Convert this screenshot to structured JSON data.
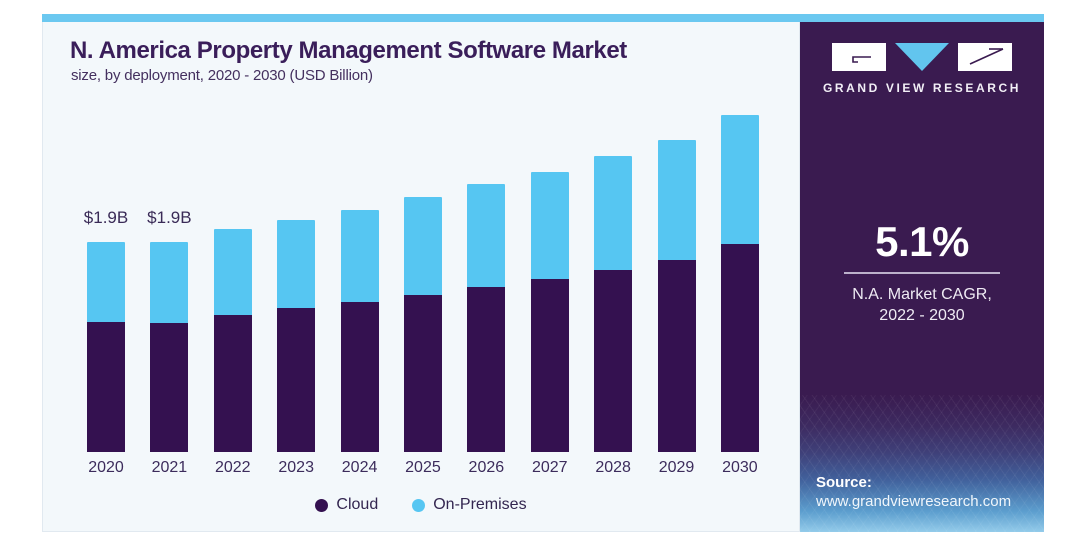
{
  "header": {
    "title": "N. America Property Management Software Market",
    "subtitle": "size, by deployment, 2020 - 2030 (USD Billion)"
  },
  "chart_data": {
    "type": "bar",
    "stacked": true,
    "title": "N. America Property Management Software Market size, by deployment, 2020 - 2030 (USD Billion)",
    "unit": "USD Billion",
    "categories": [
      "2020",
      "2021",
      "2022",
      "2023",
      "2024",
      "2025",
      "2026",
      "2027",
      "2028",
      "2029",
      "2030"
    ],
    "series": [
      {
        "name": "Cloud",
        "color": "#341150",
        "values": [
          1.18,
          1.17,
          1.24,
          1.3,
          1.36,
          1.42,
          1.49,
          1.57,
          1.65,
          1.74,
          1.88
        ]
      },
      {
        "name": "On-Premises",
        "color": "#56C6F2",
        "values": [
          0.72,
          0.73,
          0.78,
          0.8,
          0.83,
          0.89,
          0.93,
          0.97,
          1.03,
          1.09,
          1.17
        ]
      }
    ],
    "totals": [
      1.9,
      1.9,
      2.02,
      2.1,
      2.19,
      2.31,
      2.42,
      2.54,
      2.68,
      2.83,
      3.05
    ],
    "bar_labels": [
      "$1.9B",
      "$1.9B",
      "",
      "",
      "",
      "",
      "",
      "",
      "",
      "",
      ""
    ],
    "ylim": [
      0,
      3.06
    ],
    "grid": false,
    "legend_position": "bottom",
    "legend": [
      "Cloud",
      "On-Premises"
    ]
  },
  "side_panel": {
    "brand": "GRAND VIEW RESEARCH",
    "cagr_value": "5.1%",
    "cagr_caption_line1": "N.A. Market CAGR,",
    "cagr_caption_line2": "2022 - 2030",
    "source_label": "Source:",
    "source_url": "www.grandviewresearch.com"
  },
  "colors": {
    "accent_strip": "#6BC8F0",
    "chart_bg": "#F3F8FB",
    "cloud": "#341150",
    "on_premises": "#56C6F2",
    "panel_bg": "#3A1B50",
    "title_text": "#3A1E5A",
    "logo_triangle": "#62C5EE"
  }
}
